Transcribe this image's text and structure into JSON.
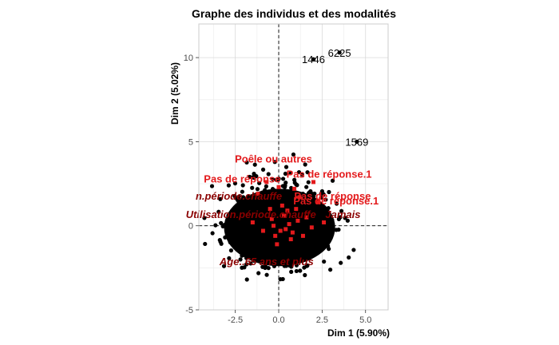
{
  "chart_data": {
    "type": "scatter",
    "title": "Graphe des individus et des modalités",
    "xlabel": "Dim 1 (5.90%)",
    "ylabel": "Dim 2 (5.02%)",
    "xlim": [
      -4.6,
      6.3
    ],
    "ylim": [
      -5.0,
      12.0
    ],
    "x_ticks": [
      -2.5,
      0.0,
      2.5,
      5.0
    ],
    "y_ticks": [
      -5,
      0,
      5,
      10
    ],
    "x_tick_labels": [
      "-2.5",
      "0.0",
      "2.5",
      "5.0"
    ],
    "y_tick_labels": [
      "-5",
      "0",
      "5",
      "10"
    ],
    "grid": true,
    "reference_lines": {
      "x": 0,
      "y": 0,
      "style": "dashed"
    },
    "colors": {
      "individuals": "#000000",
      "active_modalities": "#e31a1c",
      "supplementary_modalities": "#8b0000",
      "grid": "#d9d9d9",
      "panel_border": "#cccccc"
    },
    "labeled_individuals": [
      {
        "label": "6225",
        "x": 3.5,
        "y": 10.3
      },
      {
        "label": "1446",
        "x": 2.0,
        "y": 9.9
      },
      {
        "label": "1569",
        "x": 4.5,
        "y": 5.0
      }
    ],
    "modality_labels": [
      {
        "text": "Poêle ou autres",
        "x": -0.3,
        "y": 4.0,
        "group": "active"
      },
      {
        "text": "Pas de réponse.1",
        "x": 2.9,
        "y": 3.1,
        "group": "active"
      },
      {
        "text": "Pas de réponse",
        "x": -2.1,
        "y": 2.8,
        "group": "active"
      },
      {
        "text": "n.période.chauffe",
        "x": -2.3,
        "y": 1.8,
        "group": "supplementary"
      },
      {
        "text": "Pas de réponse",
        "x": 3.1,
        "y": 1.8,
        "group": "active"
      },
      {
        "text": "Pas de réponse.1",
        "x": 3.3,
        "y": 1.5,
        "group": "active"
      },
      {
        "text": "Utilisation.période.chauffe",
        "x": -1.6,
        "y": 0.7,
        "group": "supplementary"
      },
      {
        "text": "Jamais",
        "x": 3.7,
        "y": 0.7,
        "group": "supplementary"
      },
      {
        "text": "Age..65 ans et plus",
        "x": -0.7,
        "y": -2.1,
        "group": "supplementary"
      }
    ],
    "modality_points": [
      {
        "x": 0.2,
        "y": 1.2
      },
      {
        "x": 0.5,
        "y": 0.9
      },
      {
        "x": -0.4,
        "y": 0.4
      },
      {
        "x": 1.1,
        "y": 0.3
      },
      {
        "x": 0.8,
        "y": -0.4
      },
      {
        "x": -0.2,
        "y": -0.6
      },
      {
        "x": 0.4,
        "y": -0.2
      },
      {
        "x": 1.6,
        "y": 0.5
      },
      {
        "x": 2.3,
        "y": 1.4
      },
      {
        "x": 2.6,
        "y": 0.2
      },
      {
        "x": -1.2,
        "y": 1.9
      },
      {
        "x": -0.9,
        "y": -0.3
      },
      {
        "x": 0.0,
        "y": 2.3
      },
      {
        "x": 0.9,
        "y": 2.2
      },
      {
        "x": 1.4,
        "y": -0.6
      },
      {
        "x": -0.5,
        "y": 1.0
      },
      {
        "x": 0.6,
        "y": 0.1
      },
      {
        "x": 1.9,
        "y": -0.1
      },
      {
        "x": -0.1,
        "y": -1.1
      },
      {
        "x": 0.3,
        "y": 0.6
      },
      {
        "x": -1.5,
        "y": 0.2
      },
      {
        "x": 1.2,
        "y": 1.7
      },
      {
        "x": 2.0,
        "y": 2.6
      },
      {
        "x": -0.7,
        "y": 2.6
      },
      {
        "x": 0.1,
        "y": -0.3
      },
      {
        "x": 0.7,
        "y": -0.8
      },
      {
        "x": -0.3,
        "y": 0.0
      },
      {
        "x": 1.0,
        "y": 1.0
      }
    ],
    "individuals_cloud": {
      "count": 650,
      "center": [
        0.0,
        0.0
      ],
      "x_spread": 2.0,
      "y_spread": 1.75,
      "x_range": [
        -4.7,
        4.8
      ],
      "y_range": [
        -3.3,
        6.4
      ]
    }
  }
}
